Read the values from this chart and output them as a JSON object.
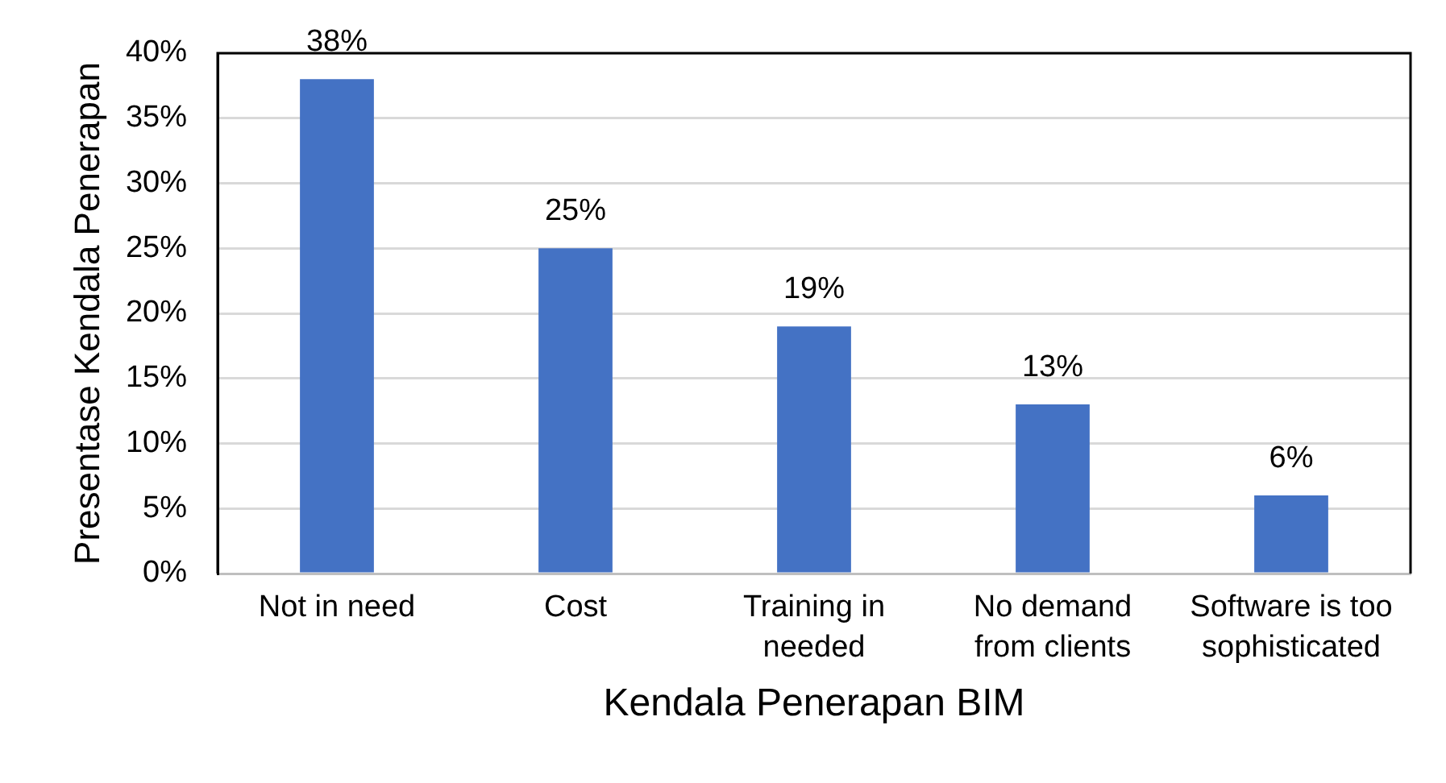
{
  "chart_data": {
    "type": "bar",
    "xlabel": "Kendala Penerapan BIM",
    "ylabel": "Presentase Kendala Penerapan",
    "categories": [
      "Not in need",
      "Cost",
      "Training in needed",
      "No demand from clients",
      "Software is too sophisticated"
    ],
    "values": [
      38,
      25,
      19,
      13,
      6
    ],
    "color": "#4472c4",
    "value_labels": [
      "38%",
      "25%",
      "19%",
      "13%",
      "6%"
    ],
    "ylim": [
      0,
      40
    ],
    "yticks": [
      {
        "value": 0,
        "label": "0%"
      },
      {
        "value": 5,
        "label": "5%"
      },
      {
        "value": 10,
        "label": "10%"
      },
      {
        "value": 15,
        "label": "15%"
      },
      {
        "value": 20,
        "label": "20%"
      },
      {
        "value": 25,
        "label": "25%"
      },
      {
        "value": 30,
        "label": "30%"
      },
      {
        "value": 35,
        "label": "35%"
      },
      {
        "value": 40,
        "label": "40%"
      }
    ],
    "grid": "y",
    "legend": false
  }
}
